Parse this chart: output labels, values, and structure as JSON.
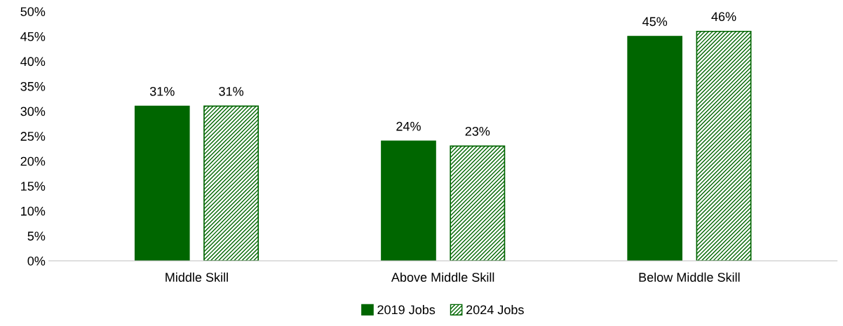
{
  "chart_data": {
    "type": "bar",
    "categories": [
      "Middle Skill",
      "Above Middle Skill",
      "Below Middle Skill"
    ],
    "series": [
      {
        "name": "2019 Jobs",
        "color": "#006600",
        "values": [
          31,
          24,
          45
        ],
        "value_labels": [
          "31%",
          "24%",
          "45%"
        ]
      },
      {
        "name": "2024 Jobs",
        "color": "#006600",
        "values": [
          31,
          23,
          46
        ],
        "value_labels": [
          "31%",
          "23%",
          "46%"
        ]
      }
    ],
    "ylim": [
      0,
      50
    ],
    "yticks": [
      {
        "value": 0,
        "label": "0%"
      },
      {
        "value": 5,
        "label": "5%"
      },
      {
        "value": 10,
        "label": "10%"
      },
      {
        "value": 15,
        "label": "15%"
      },
      {
        "value": 20,
        "label": "20%"
      },
      {
        "value": 25,
        "label": "25%"
      },
      {
        "value": 30,
        "label": "30%"
      },
      {
        "value": 35,
        "label": "35%"
      },
      {
        "value": 40,
        "label": "40%"
      },
      {
        "value": 45,
        "label": "45%"
      },
      {
        "value": 50,
        "label": "50%"
      }
    ],
    "grid": false,
    "legend": "bottom"
  }
}
